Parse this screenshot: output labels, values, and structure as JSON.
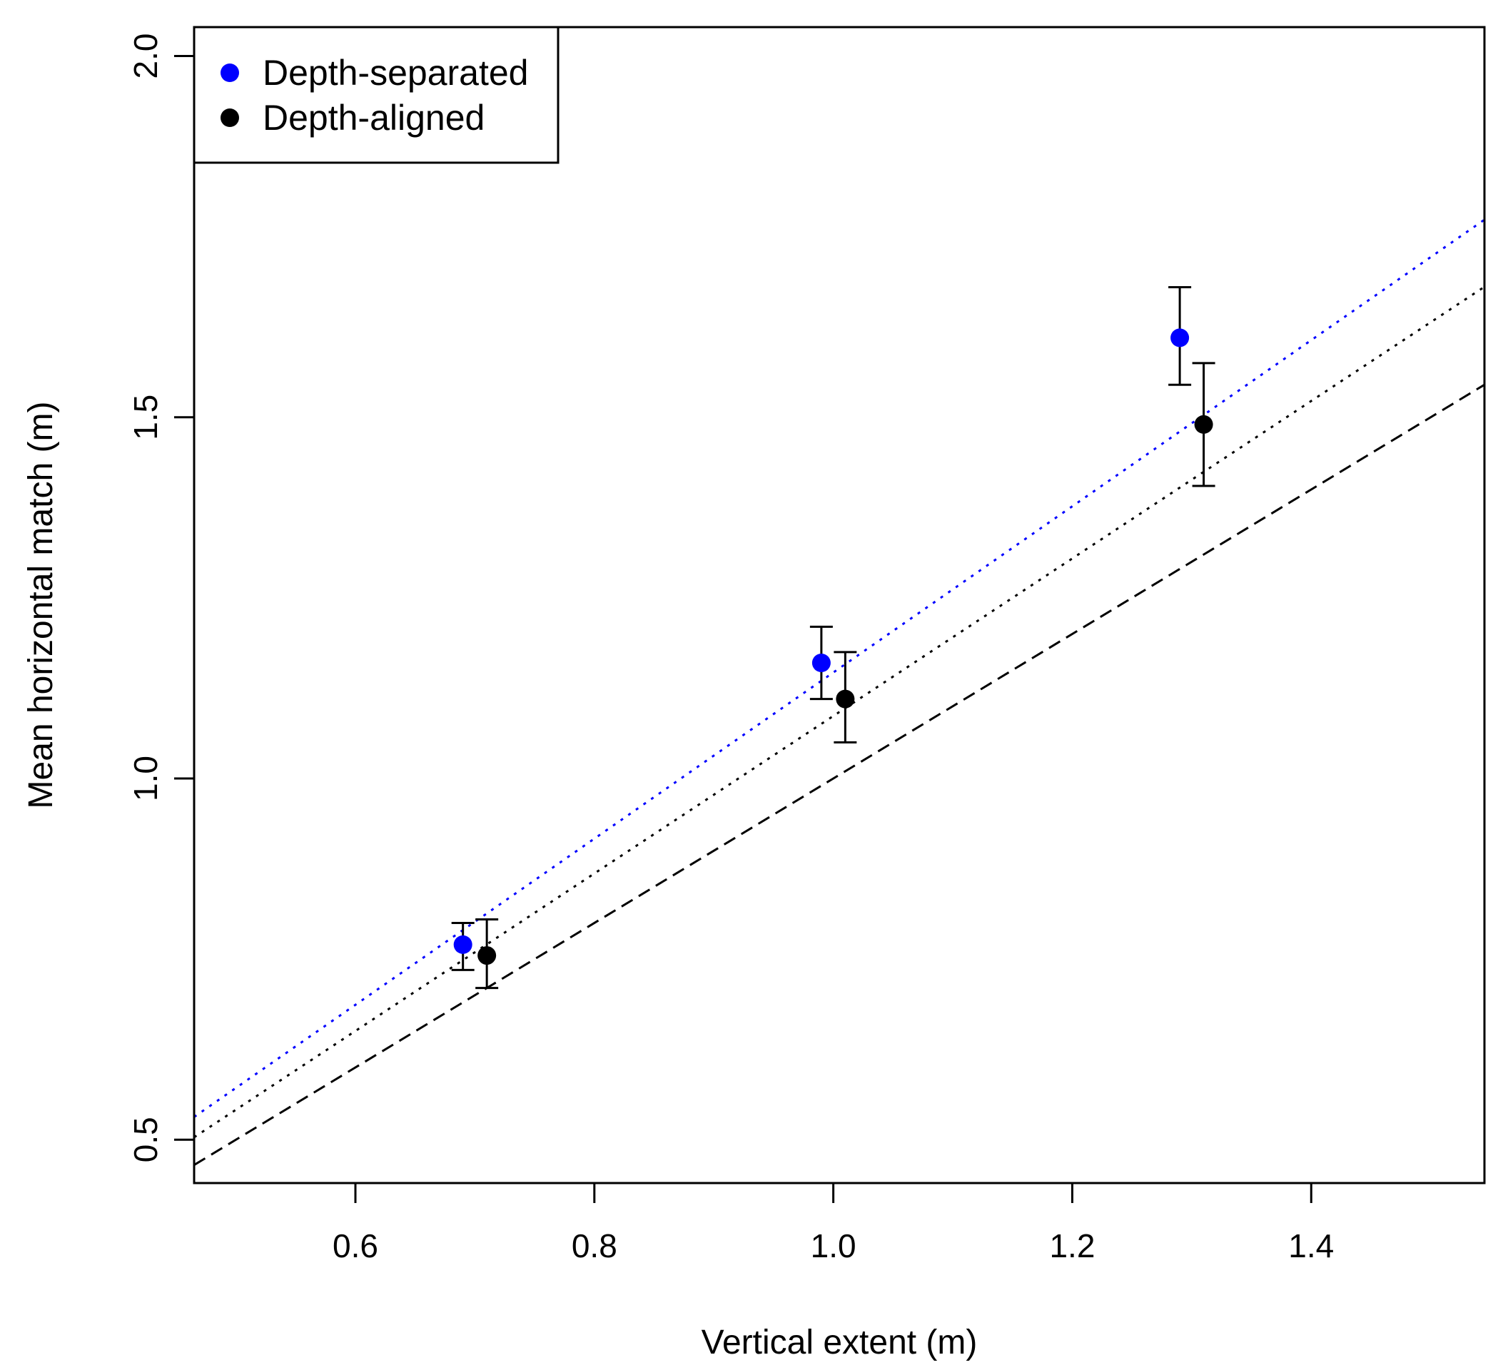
{
  "chart_data": {
    "type": "scatter",
    "title": "",
    "xlabel": "Vertical extent (m)",
    "ylabel": "Mean horizontal match (m)",
    "xlim": [
      0.465,
      1.545
    ],
    "ylim": [
      0.44,
      2.04
    ],
    "xticks": [
      0.6,
      0.8,
      1.0,
      1.2,
      1.4
    ],
    "xtick_labels": [
      "0.6",
      "0.8",
      "1.0",
      "1.2",
      "1.4"
    ],
    "yticks": [
      0.5,
      1.0,
      1.5,
      2.0
    ],
    "ytick_labels": [
      "0.5",
      "1.0",
      "1.5",
      "2.0"
    ],
    "grid": false,
    "legend_position": "top-left",
    "series": [
      {
        "name": "Depth-separated",
        "color": "#0000ff",
        "points": [
          {
            "x": 0.69,
            "y": 0.77,
            "ylo": 0.735,
            "yhi": 0.8
          },
          {
            "x": 0.99,
            "y": 1.16,
            "ylo": 1.11,
            "yhi": 1.21
          },
          {
            "x": 1.29,
            "y": 1.61,
            "ylo": 1.545,
            "yhi": 1.68
          }
        ]
      },
      {
        "name": "Depth-aligned",
        "color": "#000000",
        "points": [
          {
            "x": 0.71,
            "y": 0.755,
            "ylo": 0.71,
            "yhi": 0.805
          },
          {
            "x": 1.01,
            "y": 1.11,
            "ylo": 1.05,
            "yhi": 1.175
          },
          {
            "x": 1.31,
            "y": 1.49,
            "ylo": 1.405,
            "yhi": 1.575
          }
        ]
      }
    ],
    "lines": [
      {
        "name": "depth-separated-fit",
        "style": "dotted",
        "color": "#0000ff",
        "slope": 1.15,
        "intercept": -0.0033
      },
      {
        "name": "depth-aligned-fit",
        "style": "dotted",
        "color": "#000000",
        "slope": 1.09,
        "intercept": -0.0035
      },
      {
        "name": "identity",
        "style": "dashed",
        "color": "#000000",
        "slope": 1.0,
        "intercept": 0.0
      }
    ]
  }
}
